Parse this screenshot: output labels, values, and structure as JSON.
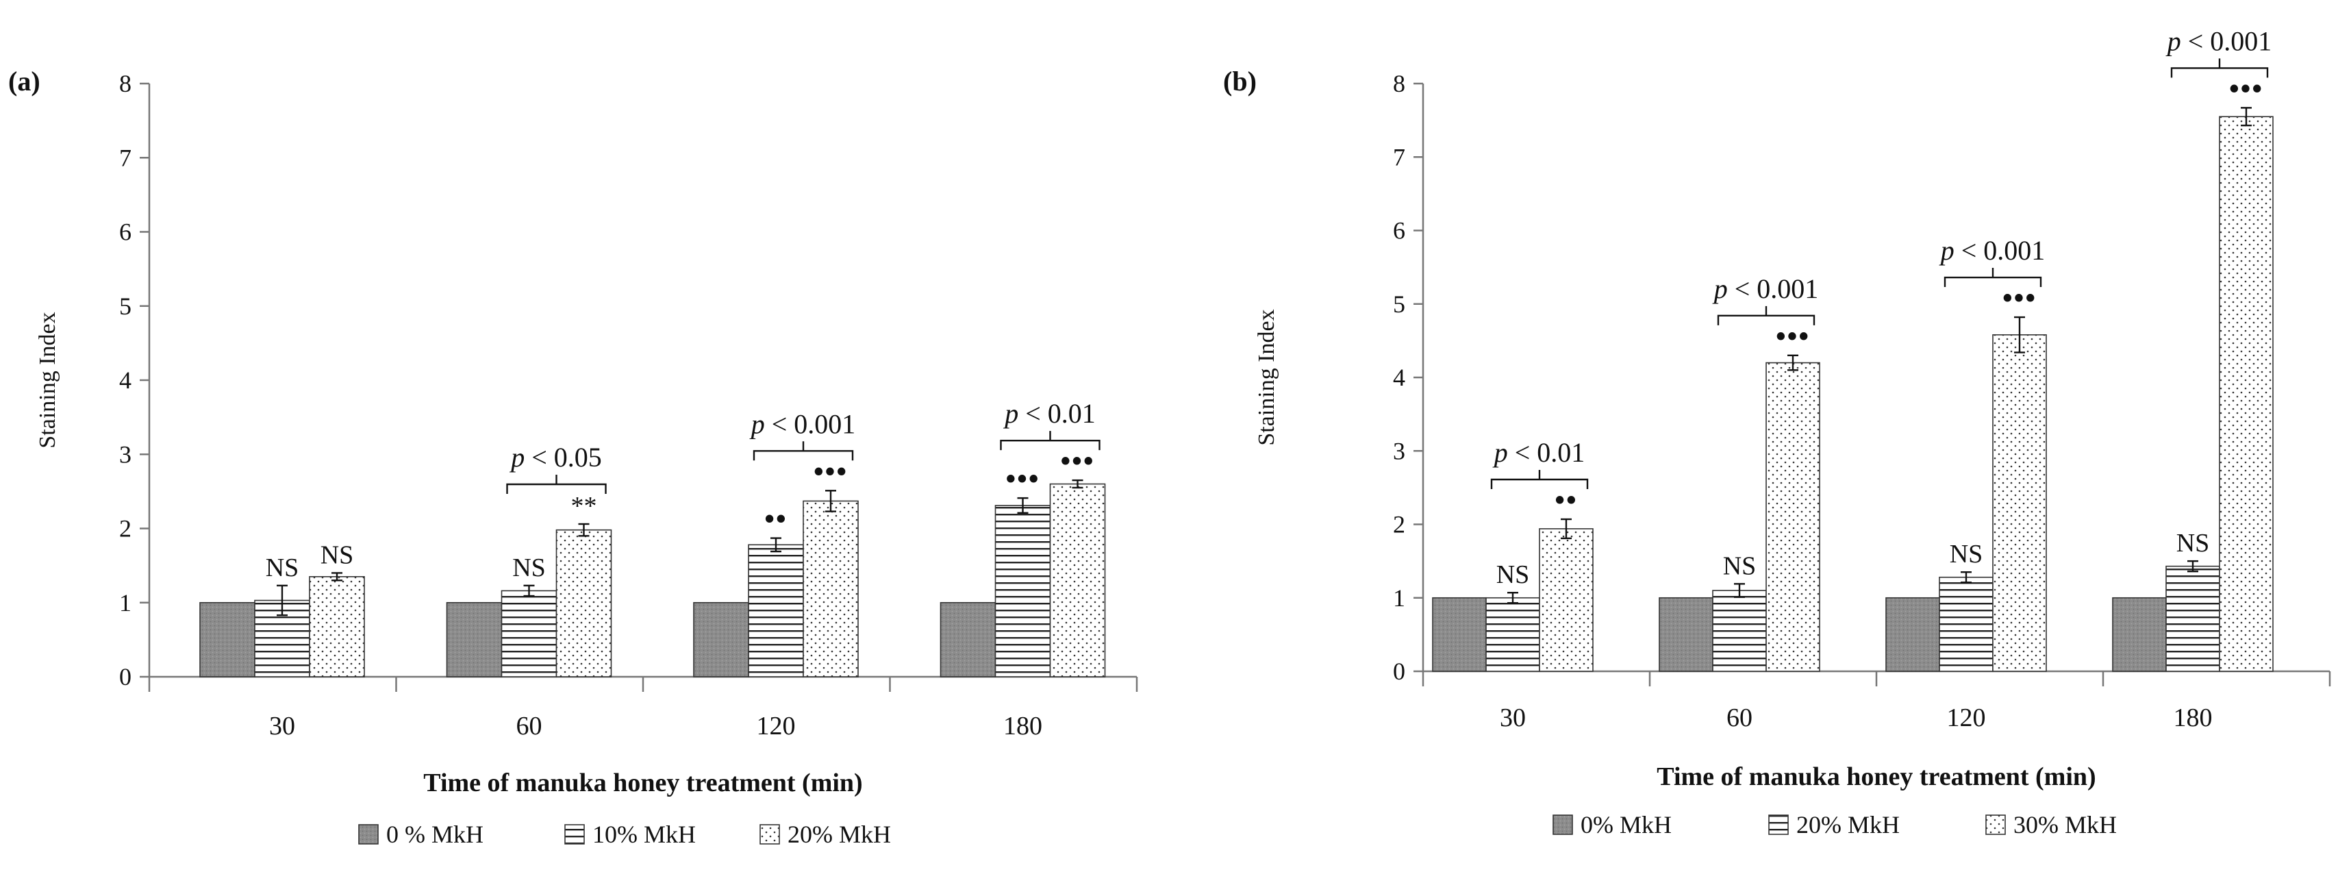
{
  "chart_data": [
    {
      "panel_label": "(a)",
      "type": "bar",
      "ylabel": "Staining Index",
      "xlabel": "Time of manuka honey treatment (min)",
      "ylim": [
        0,
        8
      ],
      "yticks": [
        0,
        1,
        2,
        3,
        4,
        5,
        6,
        7,
        8
      ],
      "categories": [
        "30",
        "60",
        "120",
        "180"
      ],
      "series": [
        {
          "name": "0 % MkH",
          "pattern": "solid",
          "values": [
            1.0,
            1.0,
            1.0,
            1.0
          ],
          "errors": [
            0,
            0,
            0,
            0
          ]
        },
        {
          "name": "10% MkH",
          "pattern": "hlines",
          "values": [
            1.03,
            1.16,
            1.78,
            2.31
          ],
          "errors": [
            0.2,
            0.07,
            0.09,
            0.1
          ]
        },
        {
          "name": "20% MkH",
          "pattern": "dots",
          "values": [
            1.35,
            1.98,
            2.37,
            2.6
          ],
          "errors": [
            0.05,
            0.08,
            0.14,
            0.05
          ]
        }
      ],
      "significance": [
        [
          "NS",
          "NS"
        ],
        [
          "NS",
          "**"
        ],
        [
          "••",
          "•••"
        ],
        [
          "•••",
          "•••"
        ]
      ],
      "brackets": [
        {
          "category": "60",
          "text": "p < 0.05"
        },
        {
          "category": "120",
          "text": "p < 0.001"
        },
        {
          "category": "180",
          "text": "p < 0.01"
        }
      ]
    },
    {
      "panel_label": "(b)",
      "type": "bar",
      "ylabel": "Staining Index",
      "xlabel": "Time of manuka honey treatment (min)",
      "ylim": [
        0,
        8
      ],
      "yticks": [
        0,
        1,
        2,
        3,
        4,
        5,
        6,
        7,
        8
      ],
      "categories": [
        "30",
        "60",
        "120",
        "180"
      ],
      "series": [
        {
          "name": "0% MkH",
          "pattern": "solid",
          "values": [
            1.0,
            1.0,
            1.0,
            1.0
          ],
          "errors": [
            0,
            0,
            0,
            0
          ]
        },
        {
          "name": "20% MkH",
          "pattern": "hlines",
          "values": [
            1.0,
            1.1,
            1.28,
            1.43
          ],
          "errors": [
            0.07,
            0.09,
            0.07,
            0.07
          ]
        },
        {
          "name": "30% MkH",
          "pattern": "dots",
          "values": [
            1.94,
            4.2,
            4.58,
            7.55
          ],
          "errors": [
            0.13,
            0.1,
            0.24,
            0.12
          ]
        }
      ],
      "significance": [
        [
          "NS",
          "••"
        ],
        [
          "NS",
          "•••"
        ],
        [
          "NS",
          "•••"
        ],
        [
          "NS",
          "•••"
        ]
      ],
      "brackets": [
        {
          "category": "30",
          "text": "p < 0.01"
        },
        {
          "category": "60",
          "text": "p < 0.001"
        },
        {
          "category": "120",
          "text": "p < 0.001"
        },
        {
          "category": "180",
          "text": "p < 0.001"
        }
      ]
    }
  ]
}
